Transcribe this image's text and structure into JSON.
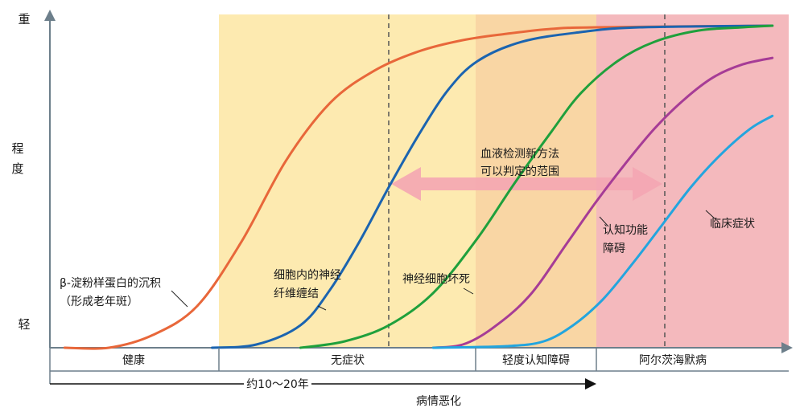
{
  "chart_data": {
    "type": "line",
    "y_axis": {
      "top_label": "重",
      "middle_label": "程\n度",
      "bottom_label": "轻"
    },
    "x_axis_label": "病情恶化",
    "span_label": "约10～20年",
    "stages": [
      {
        "label": "健康",
        "color": "#ffffff"
      },
      {
        "label": "无症状",
        "color": "#fdeab0"
      },
      {
        "label": "轻度认知障碍",
        "color": "#f9d6a4"
      },
      {
        "label": "阿尔茨海默病",
        "color": "#f4b9bd"
      }
    ],
    "series": [
      {
        "name": "β-淀粉样蛋白的沉积\n（形成老年斑）",
        "color": "#e8673a",
        "points": [
          [
            0.02,
            0.0
          ],
          [
            0.08,
            0.0
          ],
          [
            0.14,
            0.04
          ],
          [
            0.2,
            0.13
          ],
          [
            0.26,
            0.33
          ],
          [
            0.32,
            0.58
          ],
          [
            0.38,
            0.76
          ],
          [
            0.44,
            0.86
          ],
          [
            0.5,
            0.92
          ],
          [
            0.56,
            0.955
          ],
          [
            0.62,
            0.975
          ],
          [
            0.68,
            0.99
          ],
          [
            0.74,
            0.995
          ],
          [
            0.98,
            1.0
          ]
        ]
      },
      {
        "name": "细胞内的神经\n纤维缠结",
        "color": "#1b64b0",
        "points": [
          [
            0.22,
            0.0
          ],
          [
            0.28,
            0.01
          ],
          [
            0.34,
            0.07
          ],
          [
            0.38,
            0.18
          ],
          [
            0.42,
            0.33
          ],
          [
            0.46,
            0.5
          ],
          [
            0.5,
            0.66
          ],
          [
            0.54,
            0.8
          ],
          [
            0.58,
            0.89
          ],
          [
            0.64,
            0.95
          ],
          [
            0.72,
            0.98
          ],
          [
            0.8,
            0.995
          ],
          [
            0.98,
            1.0
          ]
        ]
      },
      {
        "name": "神经细胞坏死",
        "color": "#1fa03c",
        "points": [
          [
            0.34,
            0.0
          ],
          [
            0.4,
            0.02
          ],
          [
            0.46,
            0.07
          ],
          [
            0.52,
            0.17
          ],
          [
            0.58,
            0.34
          ],
          [
            0.63,
            0.51
          ],
          [
            0.68,
            0.67
          ],
          [
            0.72,
            0.79
          ],
          [
            0.77,
            0.89
          ],
          [
            0.82,
            0.95
          ],
          [
            0.88,
            0.985
          ],
          [
            0.94,
            0.995
          ],
          [
            0.98,
            1.0
          ]
        ]
      },
      {
        "name": "认知功能\n障碍",
        "color": "#a63c96",
        "points": [
          [
            0.52,
            0.0
          ],
          [
            0.56,
            0.01
          ],
          [
            0.6,
            0.06
          ],
          [
            0.65,
            0.16
          ],
          [
            0.7,
            0.32
          ],
          [
            0.74,
            0.45
          ],
          [
            0.78,
            0.57
          ],
          [
            0.82,
            0.68
          ],
          [
            0.86,
            0.77
          ],
          [
            0.9,
            0.84
          ],
          [
            0.94,
            0.88
          ],
          [
            0.98,
            0.9
          ]
        ]
      },
      {
        "name": "临床症状",
        "color": "#23a5de",
        "points": [
          [
            0.52,
            0.0
          ],
          [
            0.62,
            0.005
          ],
          [
            0.67,
            0.02
          ],
          [
            0.71,
            0.07
          ],
          [
            0.75,
            0.15
          ],
          [
            0.79,
            0.26
          ],
          [
            0.83,
            0.38
          ],
          [
            0.87,
            0.5
          ],
          [
            0.91,
            0.6
          ],
          [
            0.95,
            0.68
          ],
          [
            0.98,
            0.72
          ]
        ]
      }
    ],
    "blood_test_label": "血液检测新方法\n可以判定的范围"
  }
}
